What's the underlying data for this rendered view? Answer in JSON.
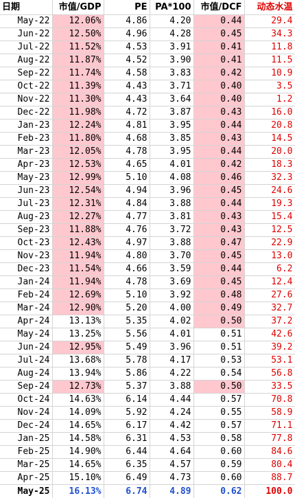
{
  "headers": {
    "date": "日期",
    "gdp": "市值/GDP",
    "pe": "PE",
    "pa": "PA*100",
    "dcf": "市值/DCF",
    "temp": "动态水温"
  },
  "colors": {
    "highlight": "#ffc7ce",
    "temperature_text": "#e00000",
    "latest_row_text": "#1f4fd0"
  },
  "rows": [
    {
      "date": "May-22",
      "gdp": "12.06%",
      "pe": "4.86",
      "pa": "4.20",
      "dcf": "0.44",
      "temp": "29.4",
      "gdp_hl": true,
      "dcf_hl": true
    },
    {
      "date": "Jun-22",
      "gdp": "12.50%",
      "pe": "4.96",
      "pa": "4.28",
      "dcf": "0.45",
      "temp": "34.3",
      "gdp_hl": true,
      "dcf_hl": true
    },
    {
      "date": "Jul-22",
      "gdp": "11.52%",
      "pe": "4.53",
      "pa": "3.91",
      "dcf": "0.41",
      "temp": "11.8",
      "gdp_hl": true,
      "dcf_hl": true
    },
    {
      "date": "Aug-22",
      "gdp": "11.87%",
      "pe": "4.52",
      "pa": "3.90",
      "dcf": "0.41",
      "temp": "11.5",
      "gdp_hl": true,
      "dcf_hl": true
    },
    {
      "date": "Sep-22",
      "gdp": "11.74%",
      "pe": "4.58",
      "pa": "3.83",
      "dcf": "0.42",
      "temp": "10.9",
      "gdp_hl": true,
      "dcf_hl": true
    },
    {
      "date": "Oct-22",
      "gdp": "11.39%",
      "pe": "4.43",
      "pa": "3.71",
      "dcf": "0.40",
      "temp": "3.5",
      "gdp_hl": true,
      "dcf_hl": true
    },
    {
      "date": "Nov-22",
      "gdp": "11.30%",
      "pe": "4.43",
      "pa": "3.64",
      "dcf": "0.40",
      "temp": "1.2",
      "gdp_hl": true,
      "dcf_hl": true
    },
    {
      "date": "Dec-22",
      "gdp": "11.98%",
      "pe": "4.72",
      "pa": "3.87",
      "dcf": "0.43",
      "temp": "16.0",
      "gdp_hl": true,
      "dcf_hl": true
    },
    {
      "date": "Jan-23",
      "gdp": "12.24%",
      "pe": "4.81",
      "pa": "3.95",
      "dcf": "0.44",
      "temp": "20.8",
      "gdp_hl": true,
      "dcf_hl": true
    },
    {
      "date": "Feb-23",
      "gdp": "11.80%",
      "pe": "4.68",
      "pa": "3.85",
      "dcf": "0.43",
      "temp": "14.5",
      "gdp_hl": true,
      "dcf_hl": true
    },
    {
      "date": "Mar-23",
      "gdp": "12.05%",
      "pe": "4.78",
      "pa": "3.95",
      "dcf": "0.44",
      "temp": "20.0",
      "gdp_hl": true,
      "dcf_hl": true
    },
    {
      "date": "Apr-23",
      "gdp": "12.53%",
      "pe": "4.65",
      "pa": "4.01",
      "dcf": "0.42",
      "temp": "18.3",
      "gdp_hl": true,
      "dcf_hl": true
    },
    {
      "date": "May-23",
      "gdp": "12.99%",
      "pe": "5.10",
      "pa": "4.08",
      "dcf": "0.46",
      "temp": "32.3",
      "gdp_hl": true,
      "dcf_hl": true
    },
    {
      "date": "Jun-23",
      "gdp": "12.54%",
      "pe": "4.94",
      "pa": "3.96",
      "dcf": "0.45",
      "temp": "24.6",
      "gdp_hl": true,
      "dcf_hl": true
    },
    {
      "date": "Jul-23",
      "gdp": "12.31%",
      "pe": "4.84",
      "pa": "3.88",
      "dcf": "0.44",
      "temp": "19.3",
      "gdp_hl": true,
      "dcf_hl": true
    },
    {
      "date": "Aug-23",
      "gdp": "12.27%",
      "pe": "4.77",
      "pa": "3.81",
      "dcf": "0.43",
      "temp": "15.4",
      "gdp_hl": true,
      "dcf_hl": true
    },
    {
      "date": "Sep-23",
      "gdp": "11.88%",
      "pe": "4.76",
      "pa": "3.72",
      "dcf": "0.43",
      "temp": "12.5",
      "gdp_hl": true,
      "dcf_hl": true
    },
    {
      "date": "Oct-23",
      "gdp": "12.43%",
      "pe": "4.97",
      "pa": "3.88",
      "dcf": "0.47",
      "temp": "22.9",
      "gdp_hl": true,
      "dcf_hl": true
    },
    {
      "date": "Nov-23",
      "gdp": "11.94%",
      "pe": "4.80",
      "pa": "3.70",
      "dcf": "0.45",
      "temp": "13.0",
      "gdp_hl": true,
      "dcf_hl": true
    },
    {
      "date": "Dec-23",
      "gdp": "11.54%",
      "pe": "4.66",
      "pa": "3.59",
      "dcf": "0.44",
      "temp": "6.2",
      "gdp_hl": true,
      "dcf_hl": true
    },
    {
      "date": "Jan-24",
      "gdp": "11.94%",
      "pe": "4.78",
      "pa": "3.69",
      "dcf": "0.45",
      "temp": "12.4",
      "gdp_hl": true,
      "dcf_hl": true
    },
    {
      "date": "Feb-24",
      "gdp": "12.69%",
      "pe": "5.10",
      "pa": "3.92",
      "dcf": "0.48",
      "temp": "27.6",
      "gdp_hl": true,
      "dcf_hl": true
    },
    {
      "date": "Mar-24",
      "gdp": "12.90%",
      "pe": "5.20",
      "pa": "4.00",
      "dcf": "0.49",
      "temp": "32.7",
      "gdp_hl": true,
      "dcf_hl": true
    },
    {
      "date": "Apr-24",
      "gdp": "13.13%",
      "pe": "5.35",
      "pa": "4.02",
      "dcf": "0.50",
      "temp": "37.2",
      "gdp_hl": false,
      "dcf_hl": true
    },
    {
      "date": "May-24",
      "gdp": "13.25%",
      "pe": "5.56",
      "pa": "4.01",
      "dcf": "0.51",
      "temp": "42.6",
      "gdp_hl": false,
      "dcf_hl": false
    },
    {
      "date": "Jun-24",
      "gdp": "12.95%",
      "pe": "5.49",
      "pa": "3.96",
      "dcf": "0.51",
      "temp": "39.2",
      "gdp_hl": true,
      "dcf_hl": false
    },
    {
      "date": "Jul-24",
      "gdp": "13.68%",
      "pe": "5.78",
      "pa": "4.17",
      "dcf": "0.53",
      "temp": "53.1",
      "gdp_hl": false,
      "dcf_hl": false
    },
    {
      "date": "Aug-24",
      "gdp": "13.94%",
      "pe": "5.86",
      "pa": "4.22",
      "dcf": "0.54",
      "temp": "56.8",
      "gdp_hl": false,
      "dcf_hl": false
    },
    {
      "date": "Sep-24",
      "gdp": "12.73%",
      "pe": "5.37",
      "pa": "3.88",
      "dcf": "0.50",
      "temp": "33.5",
      "gdp_hl": true,
      "dcf_hl": true
    },
    {
      "date": "Oct-24",
      "gdp": "14.63%",
      "pe": "6.14",
      "pa": "4.44",
      "dcf": "0.57",
      "temp": "70.8",
      "gdp_hl": false,
      "dcf_hl": false
    },
    {
      "date": "Nov-24",
      "gdp": "14.09%",
      "pe": "5.92",
      "pa": "4.24",
      "dcf": "0.55",
      "temp": "58.9",
      "gdp_hl": false,
      "dcf_hl": false
    },
    {
      "date": "Dec-24",
      "gdp": "14.65%",
      "pe": "6.17",
      "pa": "4.42",
      "dcf": "0.57",
      "temp": "71.1",
      "gdp_hl": false,
      "dcf_hl": false
    },
    {
      "date": "Jan-25",
      "gdp": "14.58%",
      "pe": "6.31",
      "pa": "4.53",
      "dcf": "0.58",
      "temp": "77.8",
      "gdp_hl": false,
      "dcf_hl": false
    },
    {
      "date": "Feb-25",
      "gdp": "14.90%",
      "pe": "6.44",
      "pa": "4.64",
      "dcf": "0.60",
      "temp": "84.6",
      "gdp_hl": false,
      "dcf_hl": false
    },
    {
      "date": "Mar-25",
      "gdp": "14.65%",
      "pe": "6.35",
      "pa": "4.57",
      "dcf": "0.59",
      "temp": "80.4",
      "gdp_hl": false,
      "dcf_hl": false
    },
    {
      "date": "Apr-25",
      "gdp": "15.10%",
      "pe": "6.49",
      "pa": "4.73",
      "dcf": "0.60",
      "temp": "88.7",
      "gdp_hl": false,
      "dcf_hl": false
    },
    {
      "date": "May-25",
      "gdp": "16.13%",
      "pe": "6.74",
      "pa": "4.89",
      "dcf": "0.62",
      "temp": "100.0",
      "gdp_hl": false,
      "dcf_hl": false
    }
  ]
}
